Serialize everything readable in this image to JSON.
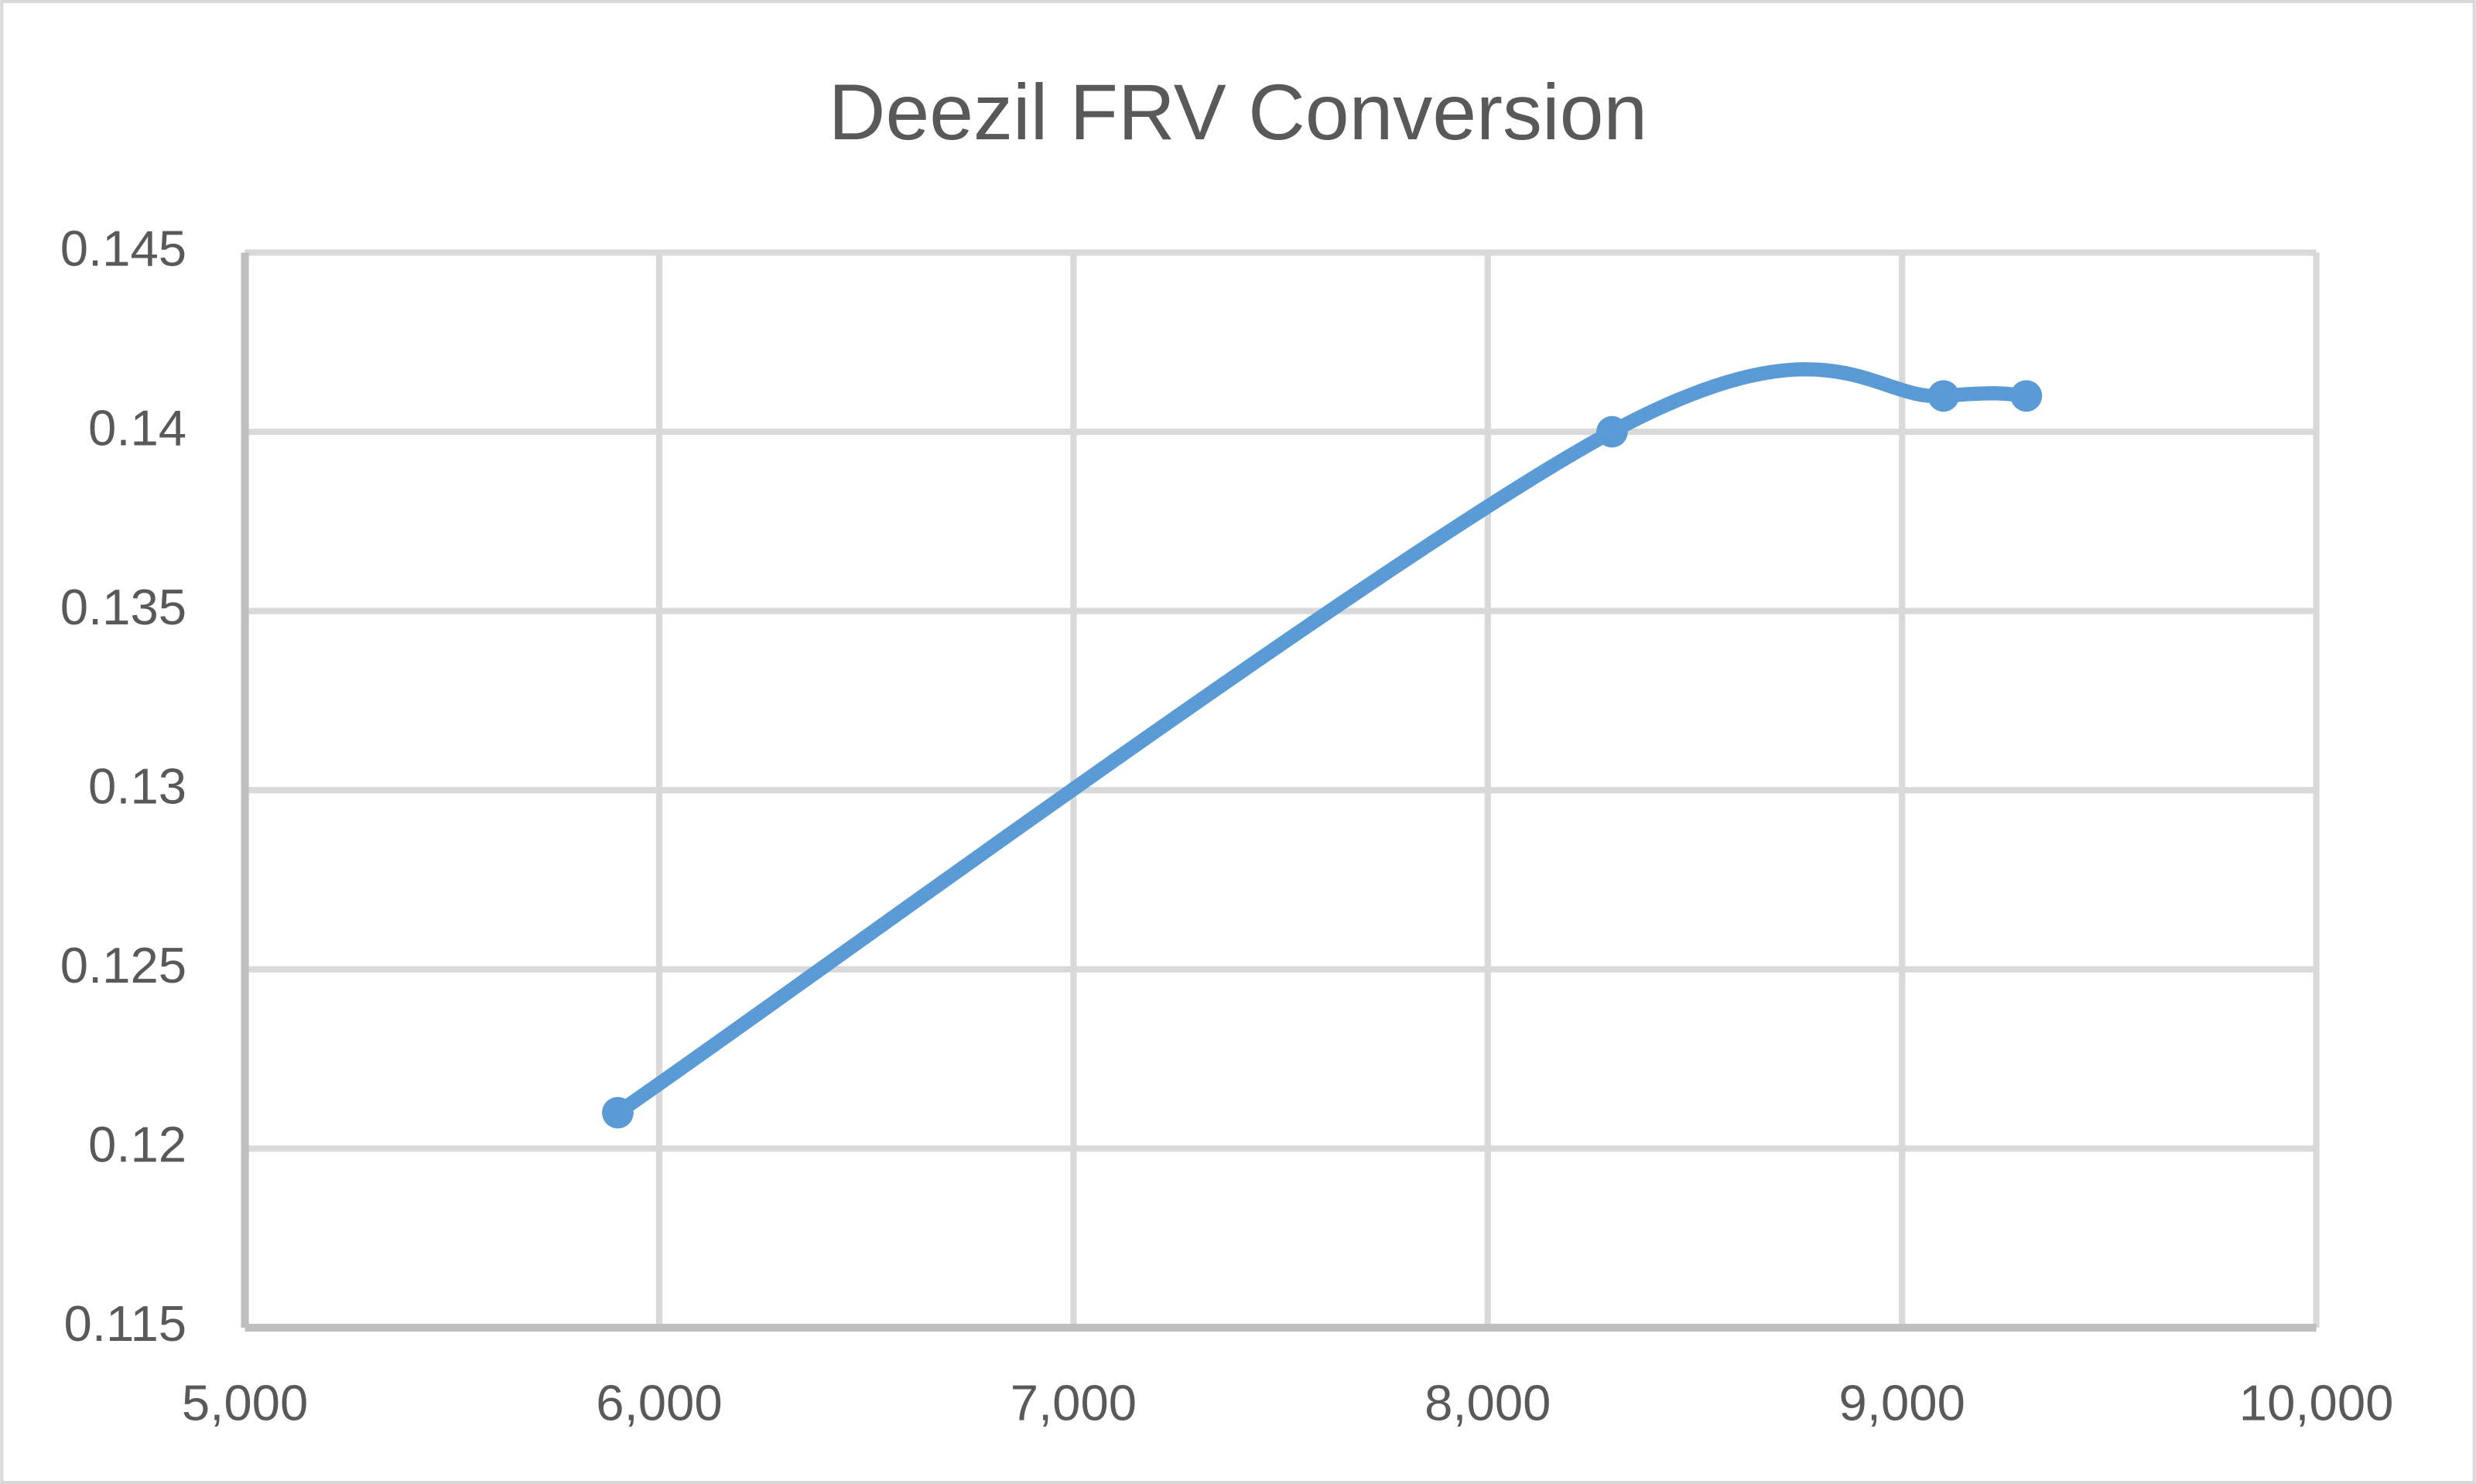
{
  "chart_data": {
    "type": "scatter-line",
    "title": "Deezil FRV Conversion",
    "x": [
      5900,
      8300,
      9100,
      9300
    ],
    "series": [
      {
        "color": "#5b9bd5",
        "values": [
          0.121,
          0.14,
          0.141,
          0.141
        ]
      }
    ],
    "xlim": [
      5000,
      10000
    ],
    "xticks": [
      {
        "value": 5000,
        "label": "5,000"
      },
      {
        "value": 6000,
        "label": "6,000"
      },
      {
        "value": 7000,
        "label": "7,000"
      },
      {
        "value": 8000,
        "label": "8,000"
      },
      {
        "value": 9000,
        "label": "9,000"
      },
      {
        "value": 10000,
        "label": "10,000"
      }
    ],
    "ylim": [
      0.115,
      0.145
    ],
    "yticks": [
      0.115,
      0.12,
      0.125,
      0.13,
      0.135,
      0.14,
      0.145
    ],
    "grid": true
  }
}
